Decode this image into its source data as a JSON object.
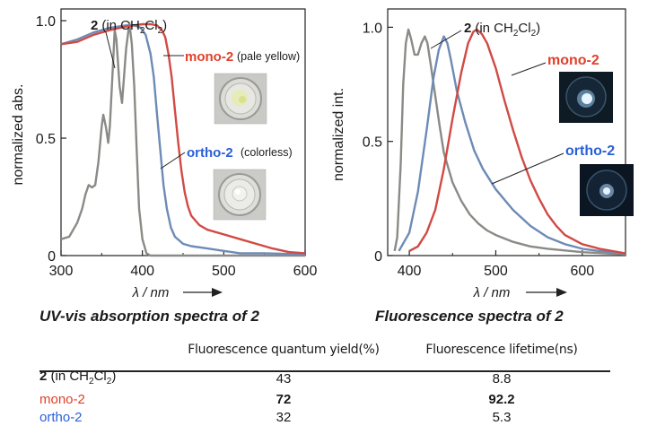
{
  "colors": {
    "gray": "#8a8a86",
    "red": "#d14a45",
    "blue": "#6d8bb6",
    "red_text": "#e0402a",
    "blue_text": "#2a5fd8"
  },
  "chart_data": [
    {
      "type": "line",
      "title": "UV-vis absorption spectra of 2",
      "xlabel": "λ / nm",
      "ylabel": "normalized abs.",
      "xlim": [
        300,
        600
      ],
      "ylim": [
        0,
        1.05
      ],
      "x_ticks": [
        "300",
        "400",
        "500",
        "600"
      ],
      "y_ticks": [
        "0",
        "0.5",
        "1.0"
      ],
      "series": [
        {
          "name": "2 (in CH2Cl2)",
          "color": "gray",
          "points": [
            [
              300,
              0.07
            ],
            [
              310,
              0.08
            ],
            [
              320,
              0.14
            ],
            [
              326,
              0.2
            ],
            [
              330,
              0.26
            ],
            [
              334,
              0.3
            ],
            [
              338,
              0.29
            ],
            [
              342,
              0.3
            ],
            [
              346,
              0.4
            ],
            [
              350,
              0.55
            ],
            [
              352,
              0.6
            ],
            [
              355,
              0.55
            ],
            [
              358,
              0.48
            ],
            [
              360,
              0.55
            ],
            [
              364,
              0.82
            ],
            [
              366,
              0.96
            ],
            [
              368,
              0.92
            ],
            [
              372,
              0.72
            ],
            [
              375,
              0.65
            ],
            [
              380,
              0.88
            ],
            [
              384,
              0.99
            ],
            [
              387,
              0.9
            ],
            [
              390,
              0.72
            ],
            [
              393,
              0.45
            ],
            [
              396,
              0.2
            ],
            [
              400,
              0.07
            ],
            [
              405,
              0.01
            ],
            [
              410,
              0.0
            ],
            [
              600,
              0.0
            ]
          ]
        },
        {
          "name": "ortho-2",
          "color": "blue",
          "points": [
            [
              300,
              0.9
            ],
            [
              320,
              0.92
            ],
            [
              340,
              0.95
            ],
            [
              360,
              0.97
            ],
            [
              380,
              0.98
            ],
            [
              390,
              0.98
            ],
            [
              398,
              0.97
            ],
            [
              404,
              0.94
            ],
            [
              410,
              0.86
            ],
            [
              414,
              0.76
            ],
            [
              418,
              0.6
            ],
            [
              422,
              0.45
            ],
            [
              426,
              0.3
            ],
            [
              430,
              0.2
            ],
            [
              435,
              0.12
            ],
            [
              440,
              0.08
            ],
            [
              450,
              0.05
            ],
            [
              460,
              0.04
            ],
            [
              480,
              0.03
            ],
            [
              500,
              0.02
            ],
            [
              520,
              0.01
            ],
            [
              550,
              0.01
            ],
            [
              600,
              0.005
            ]
          ]
        },
        {
          "name": "mono-2",
          "color": "red",
          "points": [
            [
              300,
              0.9
            ],
            [
              320,
              0.91
            ],
            [
              340,
              0.94
            ],
            [
              360,
              0.96
            ],
            [
              380,
              0.975
            ],
            [
              400,
              0.985
            ],
            [
              410,
              0.985
            ],
            [
              418,
              0.98
            ],
            [
              424,
              0.96
            ],
            [
              428,
              0.93
            ],
            [
              432,
              0.86
            ],
            [
              436,
              0.76
            ],
            [
              440,
              0.62
            ],
            [
              444,
              0.48
            ],
            [
              448,
              0.36
            ],
            [
              452,
              0.27
            ],
            [
              456,
              0.21
            ],
            [
              460,
              0.17
            ],
            [
              470,
              0.13
            ],
            [
              480,
              0.11
            ],
            [
              500,
              0.09
            ],
            [
              520,
              0.07
            ],
            [
              540,
              0.05
            ],
            [
              560,
              0.03
            ],
            [
              580,
              0.015
            ],
            [
              600,
              0.01
            ]
          ]
        }
      ],
      "annotations": {
        "gray_label": {
          "bold": "2",
          "rest": "(in CH",
          "sub": "2",
          "mid": "Cl",
          "sub2": "2",
          "end": ")"
        },
        "mono_label": "mono-2",
        "mono_note": "(pale yellow)",
        "ortho_label": "ortho-2",
        "ortho_note": "(colorless)"
      }
    },
    {
      "type": "line",
      "title": "Fluorescence spectra of 2",
      "xlabel": "λ / nm",
      "ylabel": "normalized int.",
      "xlim": [
        375,
        650
      ],
      "ylim": [
        0,
        1.08
      ],
      "x_ticks": [
        "400",
        "500",
        "600"
      ],
      "y_ticks": [
        "0",
        "0.5",
        "1.0"
      ],
      "series": [
        {
          "name": "2 (in CH2Cl2)",
          "color": "gray",
          "points": [
            [
              383,
              0.02
            ],
            [
              386,
              0.08
            ],
            [
              390,
              0.4
            ],
            [
              393,
              0.75
            ],
            [
              396,
              0.93
            ],
            [
              399,
              0.99
            ],
            [
              402,
              0.95
            ],
            [
              406,
              0.88
            ],
            [
              410,
              0.88
            ],
            [
              414,
              0.93
            ],
            [
              418,
              0.96
            ],
            [
              421,
              0.93
            ],
            [
              425,
              0.83
            ],
            [
              430,
              0.7
            ],
            [
              435,
              0.57
            ],
            [
              440,
              0.45
            ],
            [
              450,
              0.32
            ],
            [
              460,
              0.24
            ],
            [
              470,
              0.18
            ],
            [
              480,
              0.14
            ],
            [
              490,
              0.11
            ],
            [
              500,
              0.09
            ],
            [
              520,
              0.06
            ],
            [
              540,
              0.04
            ],
            [
              560,
              0.03
            ],
            [
              600,
              0.015
            ],
            [
              650,
              0.005
            ]
          ]
        },
        {
          "name": "ortho-2",
          "color": "blue",
          "points": [
            [
              388,
              0.02
            ],
            [
              394,
              0.06
            ],
            [
              400,
              0.1
            ],
            [
              410,
              0.28
            ],
            [
              420,
              0.55
            ],
            [
              428,
              0.78
            ],
            [
              434,
              0.9
            ],
            [
              440,
              0.96
            ],
            [
              444,
              0.93
            ],
            [
              448,
              0.86
            ],
            [
              455,
              0.72
            ],
            [
              465,
              0.58
            ],
            [
              475,
              0.46
            ],
            [
              485,
              0.38
            ],
            [
              500,
              0.29
            ],
            [
              520,
              0.2
            ],
            [
              540,
              0.13
            ],
            [
              560,
              0.08
            ],
            [
              580,
              0.05
            ],
            [
              600,
              0.03
            ],
            [
              620,
              0.02
            ],
            [
              650,
              0.01
            ]
          ]
        },
        {
          "name": "mono-2",
          "color": "red",
          "points": [
            [
              400,
              0.02
            ],
            [
              410,
              0.04
            ],
            [
              420,
              0.1
            ],
            [
              430,
              0.2
            ],
            [
              440,
              0.38
            ],
            [
              450,
              0.6
            ],
            [
              460,
              0.8
            ],
            [
              468,
              0.93
            ],
            [
              474,
              0.98
            ],
            [
              478,
              0.99
            ],
            [
              484,
              0.97
            ],
            [
              490,
              0.93
            ],
            [
              500,
              0.82
            ],
            [
              510,
              0.68
            ],
            [
              520,
              0.55
            ],
            [
              530,
              0.43
            ],
            [
              540,
              0.33
            ],
            [
              550,
              0.25
            ],
            [
              560,
              0.18
            ],
            [
              570,
              0.13
            ],
            [
              580,
              0.09
            ],
            [
              600,
              0.05
            ],
            [
              620,
              0.03
            ],
            [
              650,
              0.01
            ]
          ]
        }
      ],
      "annotations": {
        "gray_label": {
          "bold": "2",
          "rest": "(in CH",
          "sub": "2",
          "mid": "Cl",
          "sub2": "2",
          "end": ")"
        },
        "mono_label": "mono-2",
        "ortho_label": "ortho-2"
      }
    }
  ],
  "table": {
    "headers": [
      "Fluorescence quantum yield(%)",
      "Fluorescence lifetime(ns)"
    ],
    "rows": [
      {
        "label_bold": "2",
        "label_rest": " (in CH",
        "sub1": "2",
        "mid": "Cl",
        "sub2": "2",
        "end": ")",
        "qy": "43",
        "lt": "8.8"
      },
      {
        "label": "mono-2",
        "qy": "72",
        "lt": "92.2"
      },
      {
        "label": "ortho-2",
        "qy": "32",
        "lt": "5.3"
      }
    ]
  }
}
